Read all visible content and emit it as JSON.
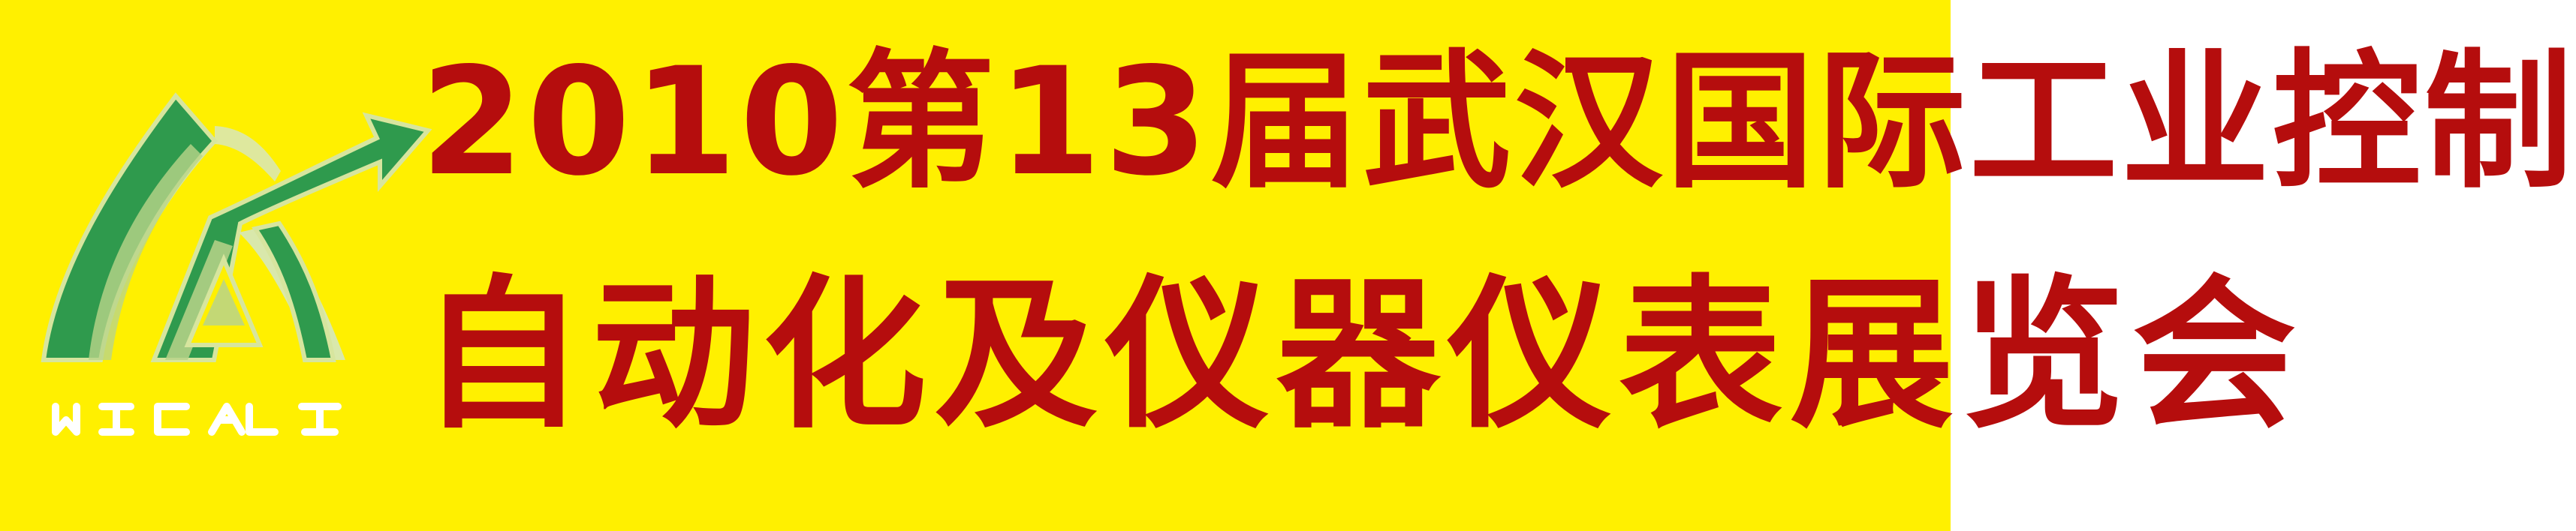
{
  "banner": {
    "background_color": "#fff000",
    "text_color": "#b50d0d",
    "logo": {
      "icon": "wicat-logo-icon",
      "wordmark": "WICAT",
      "colors": {
        "green": "#2f9a4d",
        "light_green": "#b9d48a",
        "shadow": "#dce7a6",
        "white": "#ffffff"
      }
    },
    "title_line_1": "2010第13届武汉国际工业控制",
    "title_line_2": "自动化及仪器仪表展览会"
  }
}
